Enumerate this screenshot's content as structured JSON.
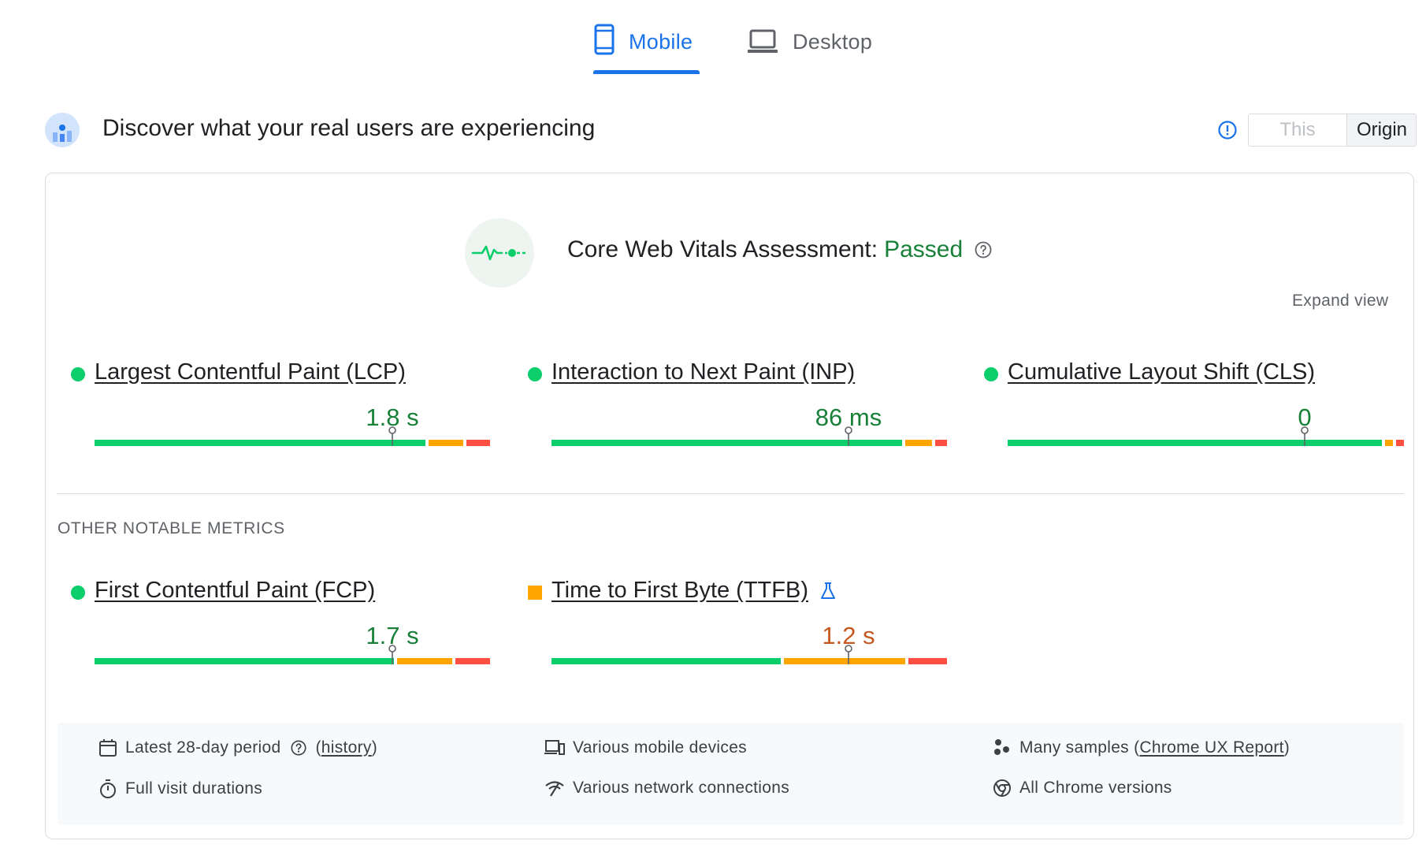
{
  "tabs": [
    {
      "label": "Mobile",
      "active": true,
      "icon": "smartphone-icon"
    },
    {
      "label": "Desktop",
      "active": false,
      "icon": "laptop-icon"
    }
  ],
  "header": {
    "title": "Discover what your real users are experiencing",
    "toggle": {
      "this_url": "This URL",
      "origin": "Origin",
      "selected": "Origin"
    }
  },
  "assessment": {
    "label": "Core Web Vitals Assessment:",
    "status": "Passed",
    "expand_view": "Expand view"
  },
  "core_metrics": [
    {
      "name": "Largest Contentful Paint (LCP)",
      "value": "1.8 s",
      "rating": "good",
      "distribution": {
        "good": 0.85,
        "needs_improvement": 0.09,
        "poor": 0.06
      }
    },
    {
      "name": "Interaction to Next Paint (INP)",
      "value": "86 ms",
      "rating": "good",
      "distribution": {
        "good": 0.9,
        "needs_improvement": 0.07,
        "poor": 0.03
      }
    },
    {
      "name": "Cumulative Layout Shift (CLS)",
      "value": "0",
      "rating": "good",
      "distribution": {
        "good": 0.96,
        "needs_improvement": 0.02,
        "poor": 0.02
      }
    }
  ],
  "other_label": "OTHER NOTABLE METRICS",
  "other_metrics": [
    {
      "name": "First Contentful Paint (FCP)",
      "value": "1.7 s",
      "rating": "good",
      "distribution": {
        "good": 0.77,
        "needs_improvement": 0.14,
        "poor": 0.09
      }
    },
    {
      "name": "Time to First Byte (TTFB)",
      "value": "1.2 s",
      "rating": "needs-improvement",
      "experimental": true,
      "distribution": {
        "good": 0.59,
        "needs_improvement": 0.31,
        "poor": 0.1
      }
    }
  ],
  "footer": {
    "period": "Latest 28-day period",
    "history": "history",
    "devices": "Various mobile devices",
    "samples_prefix": "Many samples (",
    "samples_link": "Chrome UX Report",
    "samples_suffix": ")",
    "durations": "Full visit durations",
    "network": "Various network connections",
    "versions": "All Chrome versions"
  },
  "colors": {
    "good": "#0cce6b",
    "needs_improvement": "#ffa400",
    "poor": "#ff4e42",
    "accent": "#1a73e8"
  }
}
